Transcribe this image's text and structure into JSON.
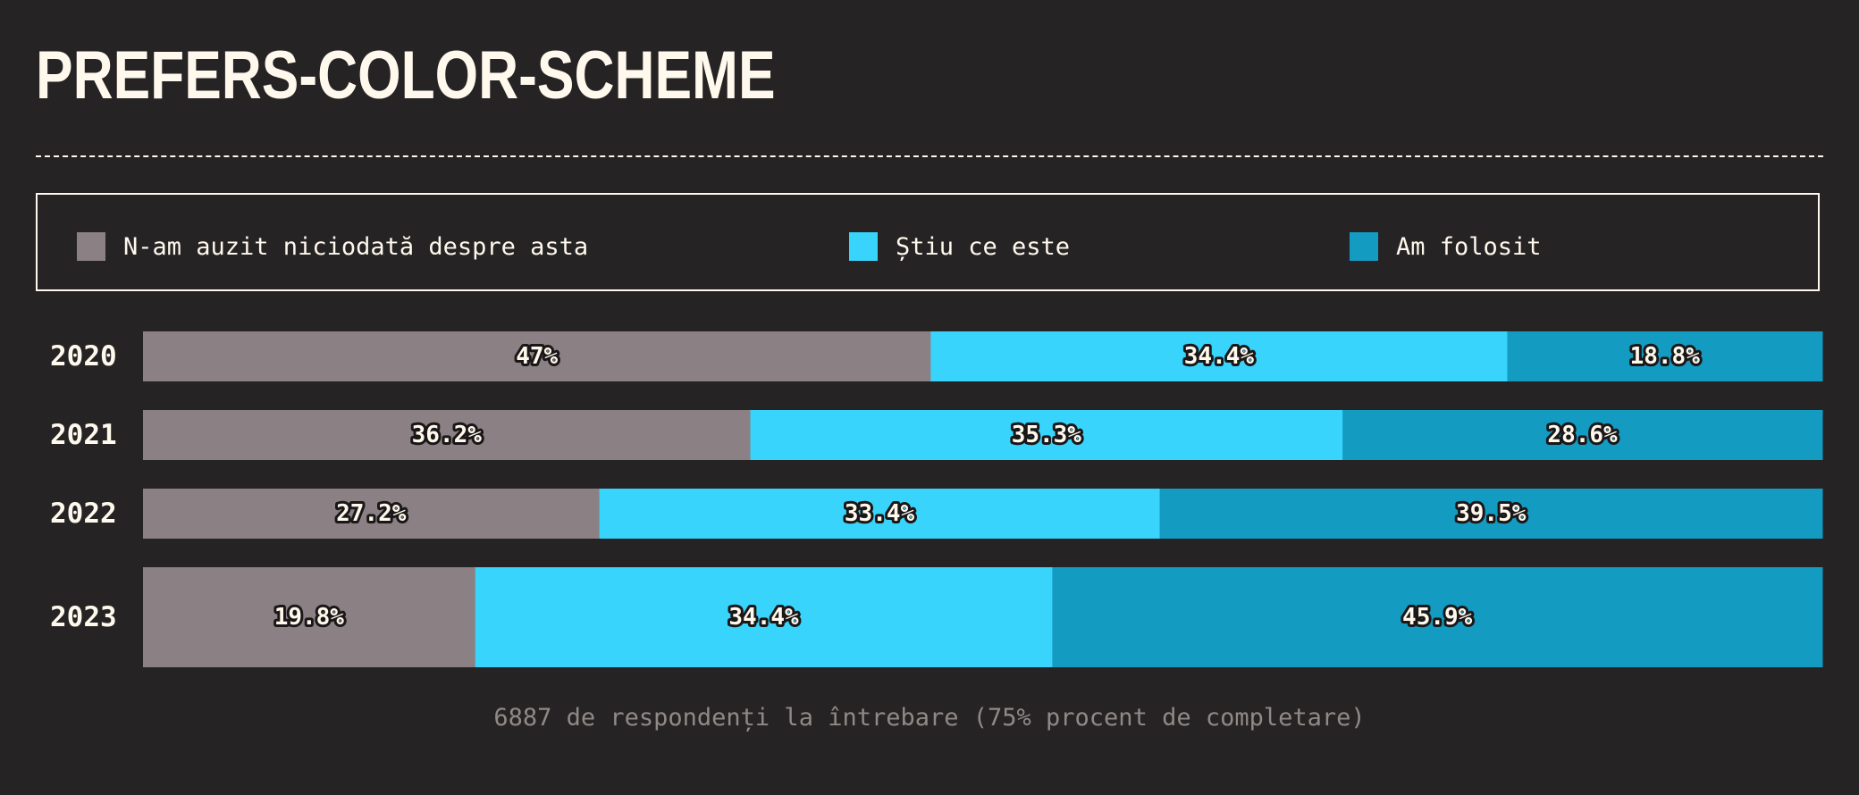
{
  "title": "PREFERS-COLOR-SCHEME",
  "footnote": "6887 de respondenți la întrebare (75% procent de completare)",
  "colors": {
    "background": "#262325",
    "text": "#fff8ec",
    "muted": "#8f8a86"
  },
  "chart_data": {
    "type": "bar",
    "orientation": "horizontal",
    "stacked": true,
    "title": "PREFERS-COLOR-SCHEME",
    "categories": [
      "2020",
      "2021",
      "2022",
      "2023"
    ],
    "xlim": [
      0,
      100
    ],
    "legend_position": "top",
    "grid": false,
    "series": [
      {
        "name": "N-am auzit niciodată despre asta",
        "color": "#8b8084",
        "values": [
          47,
          36.2,
          27.2,
          19.8
        ],
        "labels": [
          "47%",
          "36.2%",
          "27.2%",
          "19.8%"
        ]
      },
      {
        "name": "Știu ce este",
        "color": "#38d4fc",
        "values": [
          34.4,
          35.3,
          33.4,
          34.4
        ],
        "labels": [
          "34.4%",
          "35.3%",
          "33.4%",
          "34.4%"
        ]
      },
      {
        "name": "Am folosit",
        "color": "#149bc2",
        "values": [
          18.8,
          28.6,
          39.5,
          45.9
        ],
        "labels": [
          "18.8%",
          "28.6%",
          "39.5%",
          "45.9%"
        ]
      }
    ]
  }
}
